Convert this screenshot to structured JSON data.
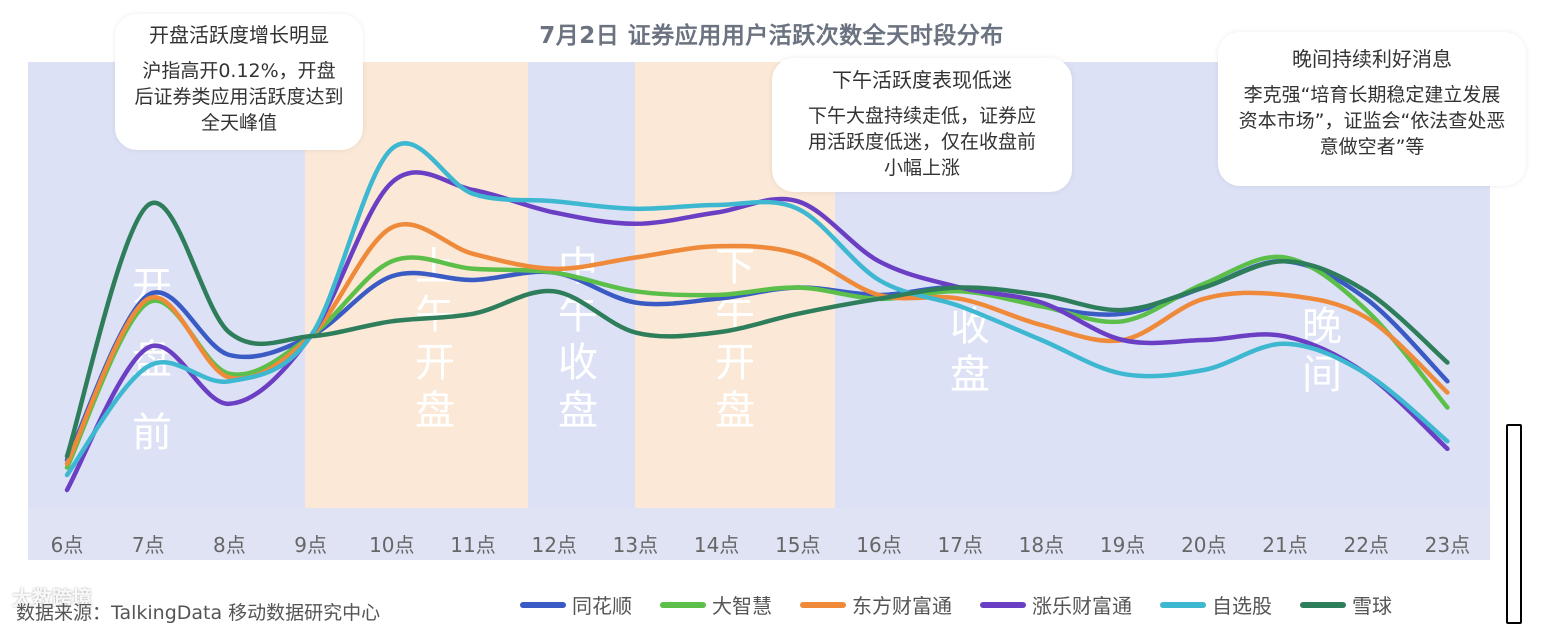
{
  "chart_data": {
    "type": "line",
    "title": "7月2日 证券应用用户活跃次数全天时段分布",
    "categories": [
      "6点",
      "7点",
      "8点",
      "9点",
      "10点",
      "11点",
      "12点",
      "13点",
      "14点",
      "15点",
      "16点",
      "17点",
      "18点",
      "19点",
      "20点",
      "21点",
      "22点",
      "23点"
    ],
    "ylim": [
      0,
      100
    ],
    "series": [
      {
        "name": "同花顺",
        "color": "#3b5bc4",
        "values": [
          12,
          56,
          40,
          45,
          61,
          60,
          62,
          54,
          55,
          58,
          56,
          58,
          53,
          51,
          58,
          65,
          55,
          33
        ]
      },
      {
        "name": "大智慧",
        "color": "#5cbf4a",
        "values": [
          10,
          54,
          35,
          45,
          65,
          63,
          62,
          57,
          56,
          58,
          55,
          57,
          53,
          49,
          59,
          66,
          52,
          26
        ]
      },
      {
        "name": "东方财富通",
        "color": "#ee8a3a",
        "values": [
          11,
          55,
          34,
          45,
          74,
          67,
          63,
          66,
          69,
          67,
          56,
          55,
          48,
          44,
          55,
          56,
          50,
          30
        ]
      },
      {
        "name": "涨乐财富通",
        "color": "#6b3fc4",
        "values": [
          4,
          42,
          27,
          45,
          86,
          84,
          78,
          75,
          78,
          81,
          65,
          58,
          54,
          44,
          44,
          45,
          35,
          15
        ]
      },
      {
        "name": "自选股",
        "color": "#3db8d0",
        "values": [
          8,
          37,
          33,
          45,
          95,
          83,
          81,
          79,
          80,
          79,
          60,
          53,
          44,
          35,
          36,
          43,
          35,
          17
        ]
      },
      {
        "name": "雪球",
        "color": "#2e7d5b",
        "values": [
          13,
          80,
          46,
          45,
          49,
          51,
          57,
          46,
          46,
          51,
          55,
          58,
          56,
          52,
          58,
          65,
          57,
          38
        ]
      }
    ],
    "bands": [
      {
        "label": "开盘前",
        "from": "6点",
        "to": "9点",
        "color": "#dde1f6"
      },
      {
        "label": "上午开盘",
        "from": "9点",
        "to": "11点",
        "color": "#fbe8d6"
      },
      {
        "label": "中午收盘",
        "from": "11点",
        "to": "13点",
        "color": "#dde1f6"
      },
      {
        "label": "下午开盘",
        "from": "13点",
        "to": "15点",
        "color": "#fbe8d6"
      },
      {
        "label": "收盘",
        "from": "15点",
        "to": "19点",
        "color": "#dde1f6"
      },
      {
        "label": "晚间",
        "from": "19点",
        "to": "23点",
        "color": "#dde1f6"
      }
    ]
  },
  "callouts": [
    {
      "head": "开盘活跃度增长明显",
      "body": "沪指高开0.12%，开盘后证券类应用活跃度达到全天峰值"
    },
    {
      "head": "下午活跃度表现低迷",
      "body": "下午大盘持续走低，证券应用活跃度低迷，仅在收盘前小幅上涨"
    },
    {
      "head": "晚间持续利好消息",
      "body": "李克强“培育长期稳定建立发展资本市场”，证监会“依法查处恶意做空者”等"
    }
  ],
  "source": "数据来源：TalkingData 移动数据研究中心",
  "watermark": "大数跨境"
}
